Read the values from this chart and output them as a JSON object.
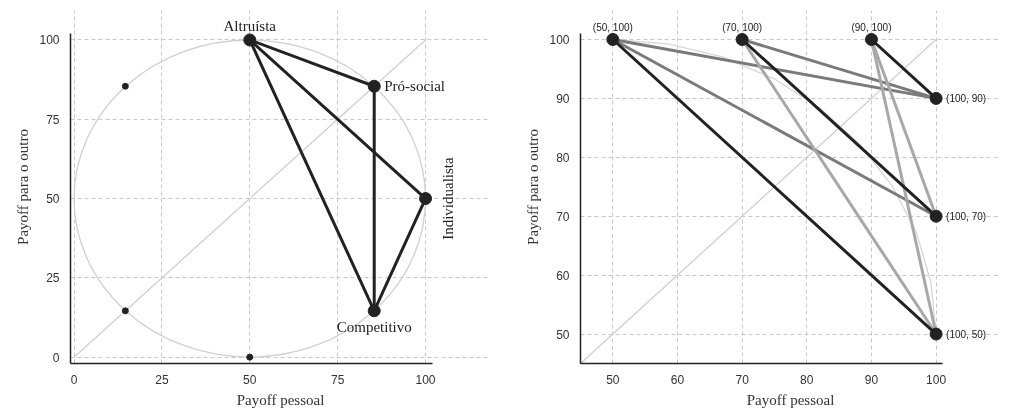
{
  "chart_data": [
    {
      "type": "line",
      "xlabel": "Payoff pessoal",
      "ylabel": "Payoff para o outro",
      "xlim": [
        -1,
        102
      ],
      "ylim": [
        -2,
        102
      ],
      "xticks": [
        0,
        25,
        50,
        75,
        100
      ],
      "yticks": [
        0,
        25,
        50,
        75,
        100
      ],
      "grid": true,
      "series": [
        {
          "color": "#d0d0d0",
          "x": [
            0,
            100
          ],
          "values": [
            0,
            100
          ]
        },
        {
          "color": "#222222",
          "x": [
            50,
            85.4,
            85.4
          ],
          "values": [
            100,
            85.4,
            14.6
          ]
        },
        {
          "color": "#222222",
          "x": [
            50,
            100,
            85.4
          ],
          "values": [
            100,
            50,
            14.6
          ]
        },
        {
          "color": "#222222",
          "x": [
            50,
            85.4
          ],
          "values": [
            100,
            14.6
          ]
        },
        {
          "type": "scatter",
          "color": "#222222",
          "x": [
            14.6,
            14.6,
            50
          ],
          "values": [
            85.4,
            14.6,
            0
          ]
        },
        {
          "type": "scatter",
          "color": "#222222",
          "x": [
            50,
            85.4,
            100,
            85.4
          ],
          "values": [
            100,
            85.4,
            50,
            14.6
          ]
        }
      ],
      "annotations": [
        {
          "text": "Altruísta",
          "x": 50,
          "y": 100
        },
        {
          "text": "Pró-social",
          "x": 85.4,
          "y": 85.4
        },
        {
          "text": "Individualista",
          "x": 100,
          "y": 50
        },
        {
          "text": "Competitivo",
          "x": 85.4,
          "y": 14.6
        }
      ]
    },
    {
      "type": "line",
      "xlabel": "Payoff pessoal",
      "ylabel": "Payoff para o outro",
      "xlim": [
        45,
        101
      ],
      "ylim": [
        45,
        101
      ],
      "xticks": [
        50,
        60,
        70,
        80,
        90,
        100
      ],
      "yticks": [
        50,
        60,
        70,
        80,
        90,
        100
      ],
      "grid": true,
      "series": [
        {
          "color": "#d8d8d8",
          "x": [
            50,
            58.7,
            67.1,
            75,
            82.1,
            88.3,
            93.3,
            97.0,
            99.2,
            100
          ],
          "values": [
            100,
            99.2,
            97.0,
            93.3,
            88.3,
            82.1,
            75,
            67.1,
            58.7,
            50
          ]
        },
        {
          "color": "#d0d0d0",
          "x": [
            45,
            100
          ],
          "values": [
            45,
            100
          ]
        },
        {
          "color": "#7a7a7a",
          "x": [
            50,
            100
          ],
          "values": [
            100,
            90
          ]
        },
        {
          "color": "#7a7a7a",
          "x": [
            50,
            100
          ],
          "values": [
            100,
            70
          ]
        },
        {
          "color": "#7a7a7a",
          "x": [
            70,
            100
          ],
          "values": [
            100,
            90
          ]
        },
        {
          "color": "#a8a8a8",
          "x": [
            70,
            100
          ],
          "values": [
            100,
            50
          ]
        },
        {
          "color": "#a8a8a8",
          "x": [
            90,
            100
          ],
          "values": [
            100,
            70
          ]
        },
        {
          "color": "#a8a8a8",
          "x": [
            90,
            100
          ],
          "values": [
            100,
            50
          ]
        },
        {
          "color": "#222222",
          "x": [
            50,
            100
          ],
          "values": [
            100,
            50
          ]
        },
        {
          "color": "#222222",
          "x": [
            70,
            100
          ],
          "values": [
            100,
            70
          ]
        },
        {
          "color": "#222222",
          "x": [
            90,
            100
          ],
          "values": [
            100,
            90
          ]
        },
        {
          "type": "scatter",
          "color": "#222222",
          "x": [
            50,
            70,
            90,
            100,
            100,
            100
          ],
          "values": [
            100,
            100,
            100,
            90,
            70,
            50
          ]
        }
      ],
      "annotations": [
        {
          "text": "(50, 100)",
          "x": 50,
          "y": 100
        },
        {
          "text": "(70, 100)",
          "x": 70,
          "y": 100
        },
        {
          "text": "(90, 100)",
          "x": 90,
          "y": 100
        },
        {
          "text": "(100, 90)",
          "x": 100,
          "y": 90
        },
        {
          "text": "(100, 70)",
          "x": 100,
          "y": 70
        },
        {
          "text": "(100, 50)",
          "x": 100,
          "y": 50
        }
      ]
    }
  ]
}
